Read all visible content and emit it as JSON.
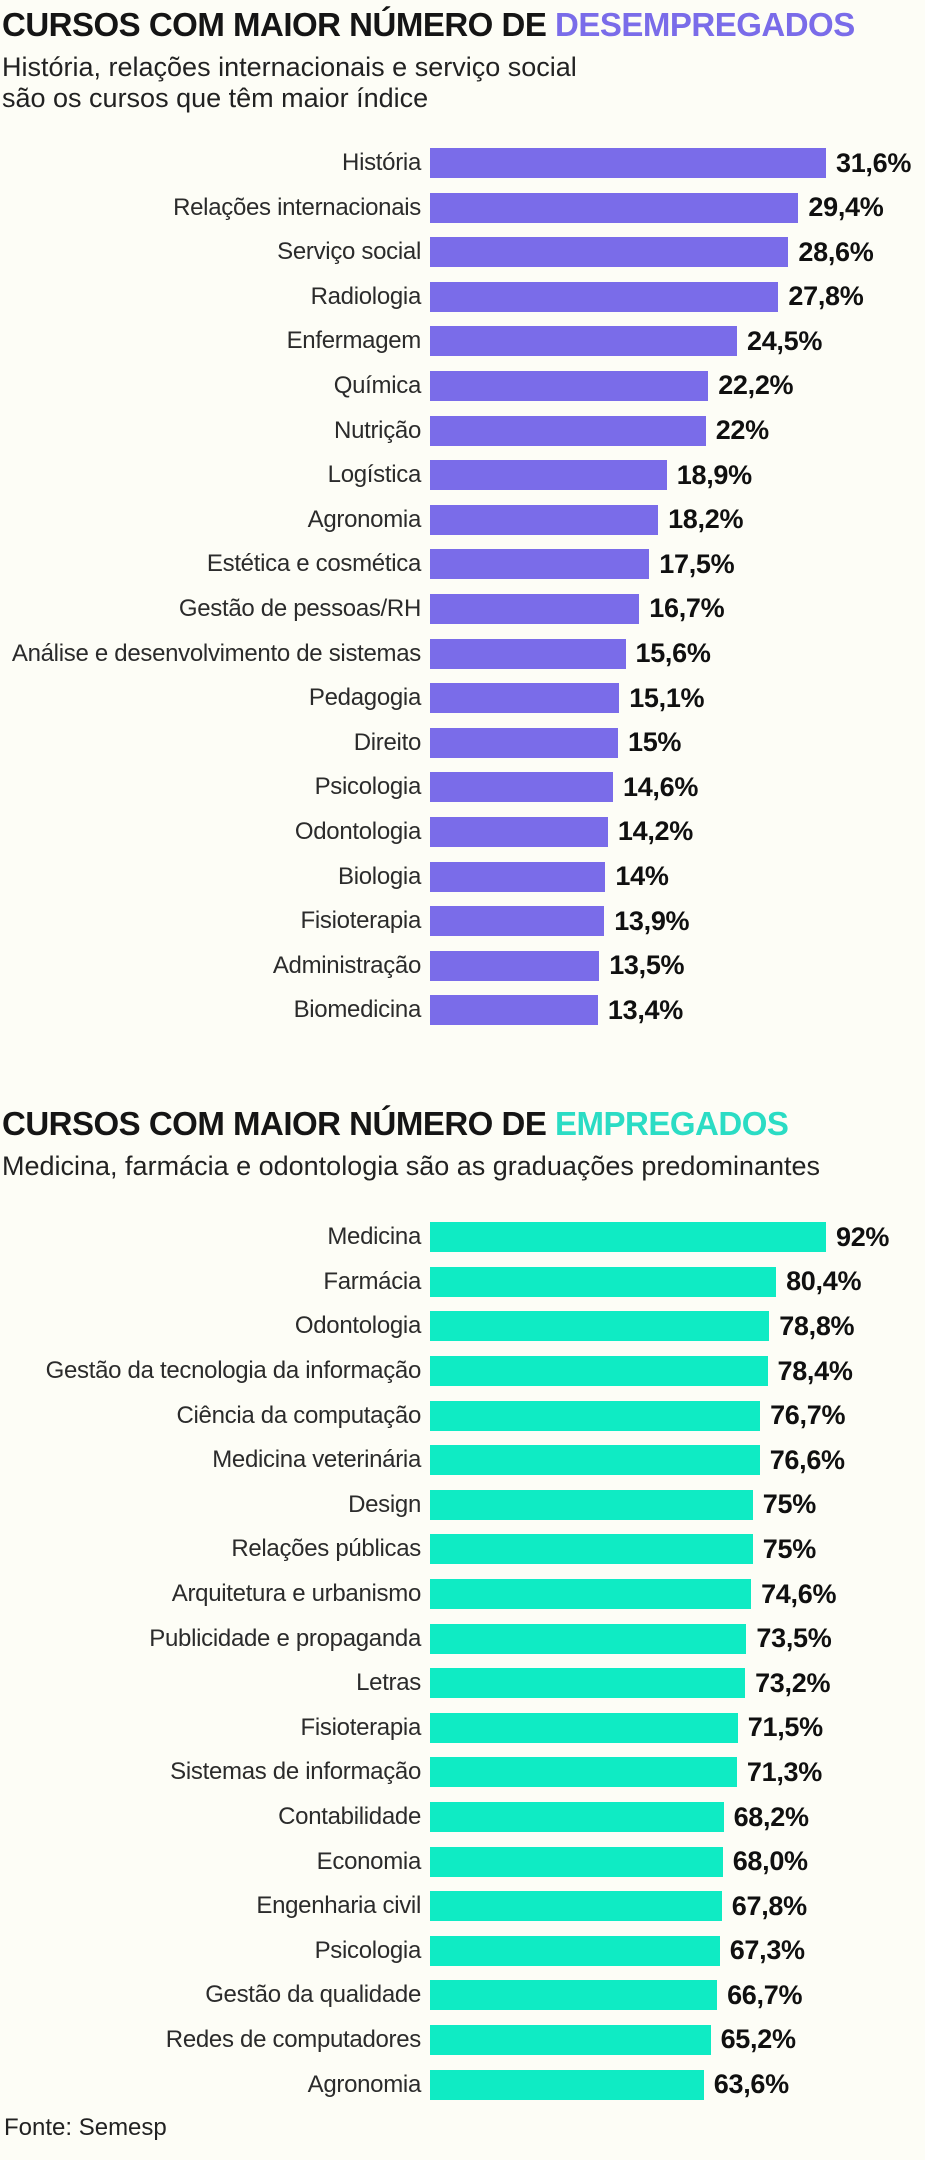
{
  "page": {
    "background": "#FDFDF6",
    "footer_source": "Fonte: Semesp"
  },
  "chart_data": [
    {
      "type": "bar",
      "orientation": "horizontal",
      "title_prefix": "CURSOS COM MAIOR NÚMERO DE ",
      "title_accent": "DESEMPREGADOS",
      "accent_color": "#7A6CE9",
      "bar_color": "#7A6CE9",
      "subtitle_lines": [
        "História, relações internacionais e serviço social",
        "são os cursos que têm maior índice"
      ],
      "xlabel": "",
      "ylabel": "",
      "xlim": [
        0,
        31.6
      ],
      "grid": false,
      "legend": "none",
      "categories": [
        "História",
        "Relações internacionais",
        "Serviço social",
        "Radiologia",
        "Enfermagem",
        "Química",
        "Nutrição",
        "Logística",
        "Agronomia",
        "Estética e cosmética",
        "Gestão de pessoas/RH",
        "Análise e desenvolvimento de sistemas",
        "Pedagogia",
        "Direito",
        "Psicologia",
        "Odontologia",
        "Biologia",
        "Fisioterapia",
        "Administração",
        "Biomedicina"
      ],
      "values": [
        31.6,
        29.4,
        28.6,
        27.8,
        24.5,
        22.2,
        22,
        18.9,
        18.2,
        17.5,
        16.7,
        15.6,
        15.1,
        15,
        14.6,
        14.2,
        14,
        13.9,
        13.5,
        13.4
      ],
      "value_labels": [
        "31,6%",
        "29,4%",
        "28,6%",
        "27,8%",
        "24,5%",
        "22,2%",
        "22%",
        "18,9%",
        "18,2%",
        "17,5%",
        "16,7%",
        "15,6%",
        "15,1%",
        "15%",
        "14,6%",
        "14,2%",
        "14%",
        "13,9%",
        "13,5%",
        "13,4%"
      ]
    },
    {
      "type": "bar",
      "orientation": "horizontal",
      "title_prefix": "CURSOS COM MAIOR NÚMERO DE ",
      "title_accent": "EMPREGADOS",
      "accent_color": "#2BDCC4",
      "bar_color": "#0FEBC4",
      "subtitle_lines": [
        "Medicina, farmácia e odontologia são as graduações predominantes"
      ],
      "xlabel": "",
      "ylabel": "",
      "xlim": [
        0,
        92
      ],
      "grid": false,
      "legend": "none",
      "categories": [
        "Medicina",
        "Farmácia",
        "Odontologia",
        "Gestão da tecnologia da informação",
        "Ciência da computação",
        "Medicina veterinária",
        "Design",
        "Relações públicas",
        "Arquitetura e urbanismo",
        "Publicidade e propaganda",
        "Letras",
        "Fisioterapia",
        "Sistemas de informação",
        "Contabilidade",
        "Economia",
        "Engenharia civil",
        "Psicologia",
        "Gestão da qualidade",
        "Redes de computadores",
        "Agronomia"
      ],
      "values": [
        92,
        80.4,
        78.8,
        78.4,
        76.7,
        76.6,
        75,
        75,
        74.6,
        73.5,
        73.2,
        71.5,
        71.3,
        68.2,
        68.0,
        67.8,
        67.3,
        66.7,
        65.2,
        63.6
      ],
      "value_labels": [
        "92%",
        "80,4%",
        "78,8%",
        "78,4%",
        "76,7%",
        "76,6%",
        "75%",
        "75%",
        "74,6%",
        "73,5%",
        "73,2%",
        "71,5%",
        "71,3%",
        "68,2%",
        "68,0%",
        "67,8%",
        "67,3%",
        "66,7%",
        "65,2%",
        "63,6%"
      ]
    }
  ]
}
